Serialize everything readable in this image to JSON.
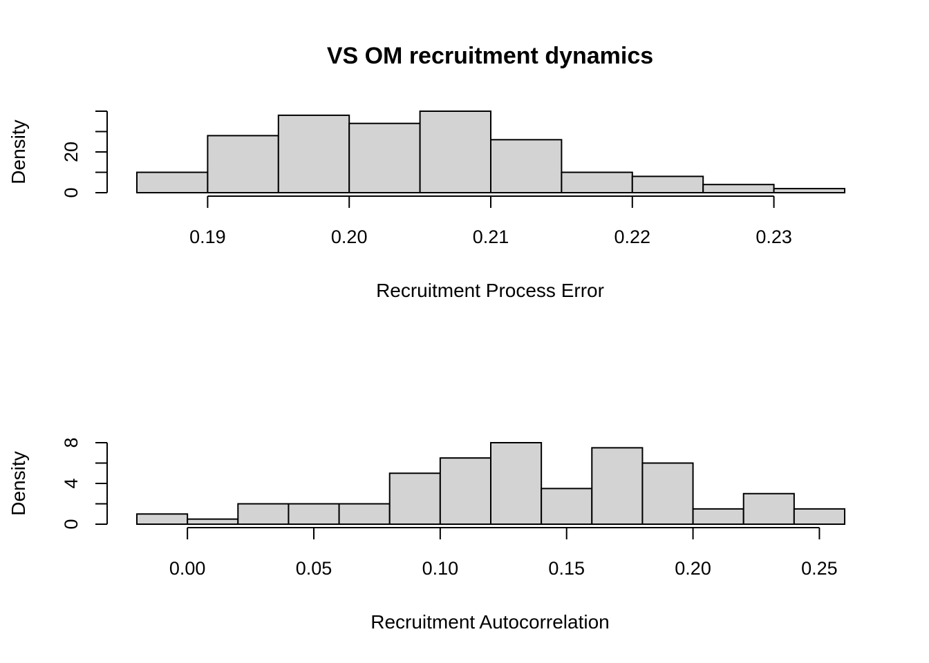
{
  "title": "VS OM recruitment dynamics",
  "chart_data": [
    {
      "type": "bar",
      "subtype": "histogram",
      "xlabel": "Recruitment Process Error",
      "ylabel": "Density",
      "breaks": [
        0.185,
        0.19,
        0.195,
        0.2,
        0.205,
        0.21,
        0.215,
        0.22,
        0.225,
        0.23,
        0.235
      ],
      "values": [
        10,
        28,
        38,
        34,
        40,
        26,
        10,
        8,
        4,
        2
      ],
      "xlim": [
        0.185,
        0.235
      ],
      "ylim": [
        0,
        40
      ],
      "x_ticks": [
        0.19,
        0.2,
        0.21,
        0.22,
        0.23
      ],
      "x_tick_labels": [
        "0.19",
        "0.20",
        "0.21",
        "0.22",
        "0.23"
      ],
      "y_ticks": [
        0,
        10,
        20,
        30,
        40
      ],
      "y_tick_labels": [
        "0",
        "",
        "20",
        "",
        ""
      ],
      "grid": false
    },
    {
      "type": "bar",
      "subtype": "histogram",
      "xlabel": "Recruitment Autocorrelation",
      "ylabel": "Density",
      "breaks": [
        -0.02,
        0.0,
        0.02,
        0.04,
        0.06,
        0.08,
        0.1,
        0.12,
        0.14,
        0.16,
        0.18,
        0.2,
        0.22,
        0.24,
        0.26
      ],
      "values": [
        1,
        0.5,
        2,
        2,
        2,
        5,
        6.5,
        8,
        3.5,
        7.5,
        6,
        1.5,
        3,
        1.5
      ],
      "xlim": [
        -0.02,
        0.26
      ],
      "ylim": [
        0,
        8
      ],
      "x_ticks": [
        0.0,
        0.05,
        0.1,
        0.15,
        0.2,
        0.25
      ],
      "x_tick_labels": [
        "0.00",
        "0.05",
        "0.10",
        "0.15",
        "0.20",
        "0.25"
      ],
      "y_ticks": [
        0,
        2,
        4,
        6,
        8
      ],
      "y_tick_labels": [
        "0",
        "",
        "4",
        "",
        "8"
      ],
      "grid": false
    }
  ]
}
